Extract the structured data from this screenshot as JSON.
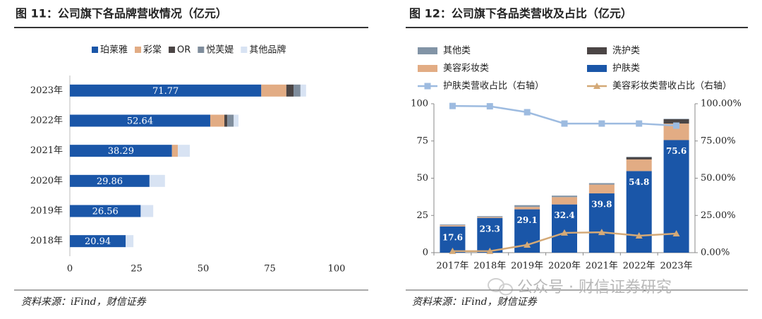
{
  "chart_data": [
    {
      "type": "bar",
      "orientation": "horizontal",
      "stacked": true,
      "title": "图 11：公司旗下各品牌营收情况（亿元）",
      "source": "资料来源：iFind，财信证券",
      "categories": [
        "2023年",
        "2022年",
        "2021年",
        "2020年",
        "2019年",
        "2018年"
      ],
      "series": [
        {
          "name": "珀莱雅",
          "color": "#1a56a8",
          "labels": true,
          "values": [
            71.77,
            52.64,
            38.29,
            29.86,
            26.56,
            20.94
          ]
        },
        {
          "name": "彩棠",
          "color": "#e2ac84",
          "values": [
            9.4,
            5.3,
            2.2,
            null,
            null,
            null
          ]
        },
        {
          "name": "OR",
          "color": "#4b4545",
          "values": [
            2.7,
            1.1,
            null,
            null,
            null,
            null
          ]
        },
        {
          "name": "悦芙媞",
          "color": "#7f8d9c",
          "values": [
            2.6,
            2.4,
            null,
            null,
            null,
            null
          ]
        },
        {
          "name": "其他品牌",
          "color": "#d8e3f3",
          "values": [
            2.1,
            1.8,
            4.5,
            5.8,
            4.7,
            2.9
          ]
        }
      ],
      "xlim": [
        0,
        100
      ],
      "xticks": [
        0,
        25,
        50,
        75,
        100
      ]
    },
    {
      "type": "combo",
      "title": "图 12：公司旗下各品类营收及占比（亿元）",
      "source": "资料来源：iFind，财信证券",
      "categories": [
        "2017年",
        "2018年",
        "2019年",
        "2020年",
        "2021年",
        "2022年",
        "2023年"
      ],
      "series": [
        {
          "name": "其他类",
          "type": "bar",
          "color": "#8294a6",
          "values": [
            0.5,
            0.6,
            1.2,
            1.0,
            1.0,
            0.3,
            0.3
          ]
        },
        {
          "name": "洗护类",
          "type": "bar",
          "color": "#4b4545",
          "values": [
            null,
            null,
            null,
            null,
            null,
            1.5,
            2.9
          ]
        },
        {
          "name": "美容彩妆类",
          "type": "bar",
          "color": "#e2ac84",
          "values": [
            0.8,
            0.6,
            1.6,
            4.9,
            5.9,
            7.8,
            11.1
          ]
        },
        {
          "name": "护肤类",
          "type": "bar",
          "color": "#1a56a8",
          "labels": true,
          "values": [
            17.6,
            23.3,
            29.1,
            32.4,
            39.8,
            54.8,
            75.6
          ]
        },
        {
          "name": "护肤类营收占比（右轴）",
          "type": "line",
          "axis": "y2",
          "marker": "square",
          "color": "#9dbbe0",
          "values": [
            98.5,
            98.3,
            94.3,
            86.7,
            86.7,
            86.7,
            85.3
          ]
        },
        {
          "name": "美容彩妆类营收占比（右轴）",
          "type": "line",
          "axis": "y2",
          "marker": "triangle",
          "color": "#d4a977",
          "values": [
            1.0,
            1.0,
            5.2,
            13.3,
            13.7,
            11.4,
            12.8
          ]
        }
      ],
      "ylim": [
        0,
        100
      ],
      "yticks": [
        0,
        25,
        50,
        75,
        100
      ],
      "y2lim": [
        0,
        100
      ],
      "y2ticks": [
        {
          "value": 0,
          "label": "0.00%"
        },
        {
          "value": 25,
          "label": "25.00%"
        },
        {
          "value": 50,
          "label": "50.00%"
        },
        {
          "value": 75,
          "label": "75.00%"
        },
        {
          "value": 100,
          "label": "100.00%"
        }
      ]
    }
  ],
  "watermark": "公众号 · 财信证券研究"
}
